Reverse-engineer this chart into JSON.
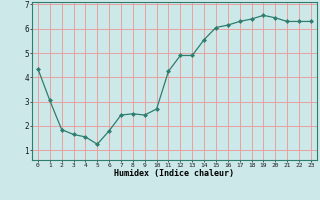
{
  "x": [
    0,
    1,
    2,
    3,
    4,
    5,
    6,
    7,
    8,
    9,
    10,
    11,
    12,
    13,
    14,
    15,
    16,
    17,
    18,
    19,
    20,
    21,
    22,
    23
  ],
  "y": [
    4.35,
    3.05,
    1.85,
    1.65,
    1.55,
    1.25,
    1.8,
    2.45,
    2.5,
    2.45,
    2.7,
    4.25,
    4.9,
    4.9,
    5.55,
    6.05,
    6.15,
    6.3,
    6.4,
    6.55,
    6.45,
    6.3,
    6.3,
    6.3
  ],
  "xlabel": "Humidex (Indice chaleur)",
  "ylim": [
    0.6,
    7.1
  ],
  "xlim": [
    -0.5,
    23.5
  ],
  "yticks": [
    1,
    2,
    3,
    4,
    5,
    6,
    7
  ],
  "xtick_labels": [
    "0",
    "1",
    "2",
    "3",
    "4",
    "5",
    "6",
    "7",
    "8",
    "9",
    "10",
    "11",
    "12",
    "13",
    "14",
    "15",
    "16",
    "17",
    "18",
    "19",
    "20",
    "21",
    "22",
    "23"
  ],
  "line_color": "#2e7d6e",
  "marker_color": "#2e7d6e",
  "bg_color": "#cce8e8",
  "grid_color": "#e8a0a0",
  "spine_color": "#2e7d6e"
}
